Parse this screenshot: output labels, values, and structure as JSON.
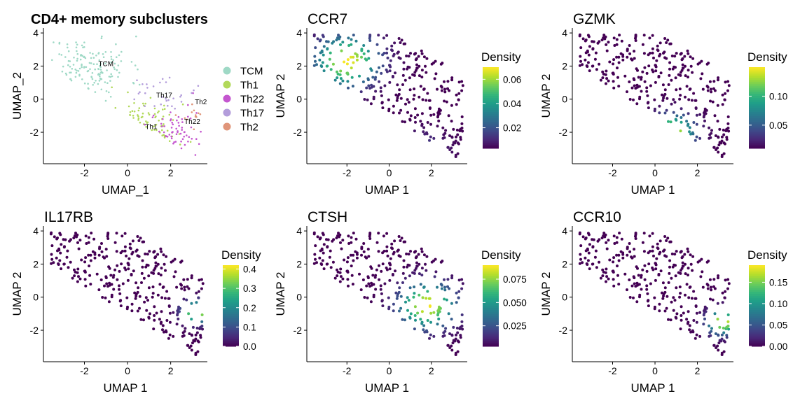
{
  "chart_data": [
    {
      "type": "scatter",
      "title": "CD4+ memory subclusters",
      "xlabel": "UMAP_1",
      "ylabel": "UMAP_2",
      "xlim": [
        -3.9,
        3.7
      ],
      "ylim": [
        -3.9,
        4.3
      ],
      "x_ticks": [
        -2,
        0,
        2
      ],
      "y_ticks": [
        -2,
        0,
        2,
        4
      ],
      "legend": {
        "placement": "right",
        "entries": [
          {
            "name": "TCM",
            "color": "#9fd9c6"
          },
          {
            "name": "Th1",
            "color": "#b2d95a"
          },
          {
            "name": "Th22",
            "color": "#c456cf"
          },
          {
            "name": "Th17",
            "color": "#b39ddb"
          },
          {
            "name": "Th2",
            "color": "#e0957a"
          }
        ]
      },
      "cluster_labels": [
        {
          "text": "TCM",
          "x": -1.0,
          "y": 2.0
        },
        {
          "text": "Th17",
          "x": 1.7,
          "y": 0.1
        },
        {
          "text": "Th2",
          "x": 3.4,
          "y": -0.3
        },
        {
          "text": "Th22",
          "x": 3.0,
          "y": -1.5
        },
        {
          "text": "Th1",
          "x": 1.1,
          "y": -1.8
        }
      ],
      "clusters": [
        {
          "name": "TCM",
          "cx": -1.8,
          "cy": 1.9,
          "sx": 0.95,
          "sy": 0.95,
          "count": 150
        },
        {
          "name": "Th1",
          "cx": 0.7,
          "cy": -1.9,
          "sx": 0.8,
          "sy": 0.9,
          "count": 70
        },
        {
          "name": "Th22",
          "cx": 2.0,
          "cy": -2.0,
          "sx": 0.8,
          "sy": 0.9,
          "count": 60
        },
        {
          "name": "Th17",
          "cx": 1.6,
          "cy": 0.4,
          "sx": 0.6,
          "sy": 0.6,
          "count": 30
        },
        {
          "name": "Th2",
          "cx": 3.0,
          "cy": -0.9,
          "sx": 0.35,
          "sy": 0.4,
          "count": 12
        }
      ]
    },
    {
      "type": "scatter",
      "title": "CCR7",
      "xlabel": "UMAP 1",
      "ylabel": "UMAP 2",
      "xlim": [
        -3.9,
        3.7
      ],
      "ylim": [
        -3.9,
        4.3
      ],
      "x_ticks": [
        -2,
        0,
        2
      ],
      "y_ticks": [
        -2,
        0,
        2,
        4
      ],
      "colorbar": {
        "title": "Density",
        "min": 0.003,
        "max": 0.07,
        "ticks": [
          0.02,
          0.04,
          0.06
        ],
        "tick_labels": [
          "0.02",
          "0.04",
          "0.06"
        ]
      },
      "density_peaks": [
        {
          "x": -2.0,
          "y": 2.3,
          "value": 0.07,
          "spread": 1.0
        },
        {
          "x": 1.5,
          "y": -3.2,
          "value": 0.02,
          "spread": 0.8
        }
      ]
    },
    {
      "type": "scatter",
      "title": "GZMK",
      "xlabel": "UMAP 1",
      "ylabel": "UMAP 2",
      "xlim": [
        -3.9,
        3.7
      ],
      "ylim": [
        -3.9,
        4.3
      ],
      "x_ticks": [
        -2,
        0,
        2
      ],
      "y_ticks": [
        -2,
        0,
        2,
        4
      ],
      "colorbar": {
        "title": "Density",
        "min": 0.01,
        "max": 0.15,
        "ticks": [
          0.05,
          0.1
        ],
        "tick_labels": [
          "0.05",
          "0.10"
        ]
      },
      "density_peaks": [
        {
          "x": 0.8,
          "y": -2.0,
          "value": 0.15,
          "spread": 0.7
        }
      ]
    },
    {
      "type": "scatter",
      "title": "IL17RB",
      "xlabel": "UMAP 1",
      "ylabel": "UMAP 2",
      "xlim": [
        -3.9,
        3.7
      ],
      "ylim": [
        -3.9,
        4.3
      ],
      "x_ticks": [
        -2,
        0,
        2
      ],
      "y_ticks": [
        -2,
        0,
        2,
        4
      ],
      "colorbar": {
        "title": "Density",
        "min": 0.0,
        "max": 0.42,
        "ticks": [
          0.0,
          0.1,
          0.2,
          0.3,
          0.4
        ],
        "tick_labels": [
          "0.0",
          "0.1",
          "0.2",
          "0.3",
          "0.4"
        ]
      },
      "density_peaks": [
        {
          "x": 3.2,
          "y": -0.9,
          "value": 0.42,
          "spread": 0.45
        }
      ]
    },
    {
      "type": "scatter",
      "title": "CTSH",
      "xlabel": "UMAP 1",
      "ylabel": "UMAP 2",
      "xlim": [
        -3.9,
        3.7
      ],
      "ylim": [
        -3.9,
        4.3
      ],
      "x_ticks": [
        -2,
        0,
        2
      ],
      "y_ticks": [
        -2,
        0,
        2,
        4
      ],
      "colorbar": {
        "title": "Density",
        "min": 0.003,
        "max": 0.09,
        "ticks": [
          0.025,
          0.05,
          0.075
        ],
        "tick_labels": [
          "0.025",
          "0.050",
          "0.075"
        ]
      },
      "density_peaks": [
        {
          "x": 1.8,
          "y": -0.5,
          "value": 0.09,
          "spread": 0.9
        }
      ]
    },
    {
      "type": "scatter",
      "title": "CCR10",
      "xlabel": "UMAP 1",
      "ylabel": "UMAP 2",
      "xlim": [
        -3.9,
        3.7
      ],
      "ylim": [
        -3.9,
        4.3
      ],
      "x_ticks": [
        -2,
        0,
        2
      ],
      "y_ticks": [
        -2,
        0,
        2,
        4
      ],
      "colorbar": {
        "title": "Density",
        "min": 0.0,
        "max": 0.19,
        "ticks": [
          0.0,
          0.05,
          0.1,
          0.15
        ],
        "tick_labels": [
          "0.00",
          "0.05",
          "0.10",
          "0.15"
        ]
      },
      "density_peaks": [
        {
          "x": 3.2,
          "y": -1.5,
          "value": 0.19,
          "spread": 0.5
        }
      ]
    }
  ]
}
